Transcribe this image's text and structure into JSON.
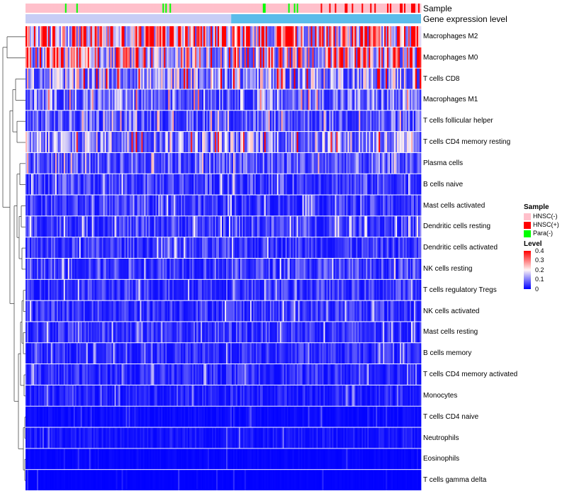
{
  "chart_data": {
    "type": "heatmap",
    "title": "",
    "annotation_tracks": [
      "Sample",
      "Gene expression level"
    ],
    "rows": [
      {
        "label": "Macrophages M2",
        "mean": 0.3
      },
      {
        "label": "Macrophages M0",
        "mean": 0.22
      },
      {
        "label": "T cells CD8",
        "mean": 0.14
      },
      {
        "label": "Macrophages M1",
        "mean": 0.1
      },
      {
        "label": "T cells follicular helper",
        "mean": 0.08
      },
      {
        "label": "T cells CD4 memory resting",
        "mean": 0.13
      },
      {
        "label": "Plasma cells",
        "mean": 0.08
      },
      {
        "label": "B cells naive",
        "mean": 0.06
      },
      {
        "label": "Mast cells activated",
        "mean": 0.05
      },
      {
        "label": "Dendritic cells resting",
        "mean": 0.06
      },
      {
        "label": "Dendritic cells activated",
        "mean": 0.05
      },
      {
        "label": "NK cells resting",
        "mean": 0.06
      },
      {
        "label": "T cells regulatory  Tregs",
        "mean": 0.05
      },
      {
        "label": "NK cells activated",
        "mean": 0.05
      },
      {
        "label": "Mast cells resting",
        "mean": 0.05
      },
      {
        "label": "B cells memory",
        "mean": 0.04
      },
      {
        "label": "T cells CD4 memory activated",
        "mean": 0.04
      },
      {
        "label": "Monocytes",
        "mean": 0.03
      },
      {
        "label": "T cells CD4 naive",
        "mean": 0.01
      },
      {
        "label": "Neutrophils",
        "mean": 0.02
      },
      {
        "label": "Eosinophils",
        "mean": 0.005
      },
      {
        "label": "T cells gamma delta",
        "mean": 0.002
      }
    ],
    "sample_groups": [
      {
        "name": "HNSC(-)",
        "color": "#ffc0cb"
      },
      {
        "name": "HNSC(+)",
        "color": "#ff0000"
      },
      {
        "name": "Para(-)",
        "color": "#00ff00"
      }
    ],
    "gene_expression_color": "#5bbcea",
    "color_scale": {
      "min": 0,
      "mid": 0.2,
      "max": 0.4,
      "low_color": "#0000ff",
      "mid_color": "#fff5f5",
      "high_color": "#ff0000",
      "ticks": [
        "0.4",
        "0.3",
        "0.2",
        "0.1",
        "0"
      ]
    },
    "legend": {
      "sample_title": "Sample",
      "level_title": "Level"
    }
  }
}
